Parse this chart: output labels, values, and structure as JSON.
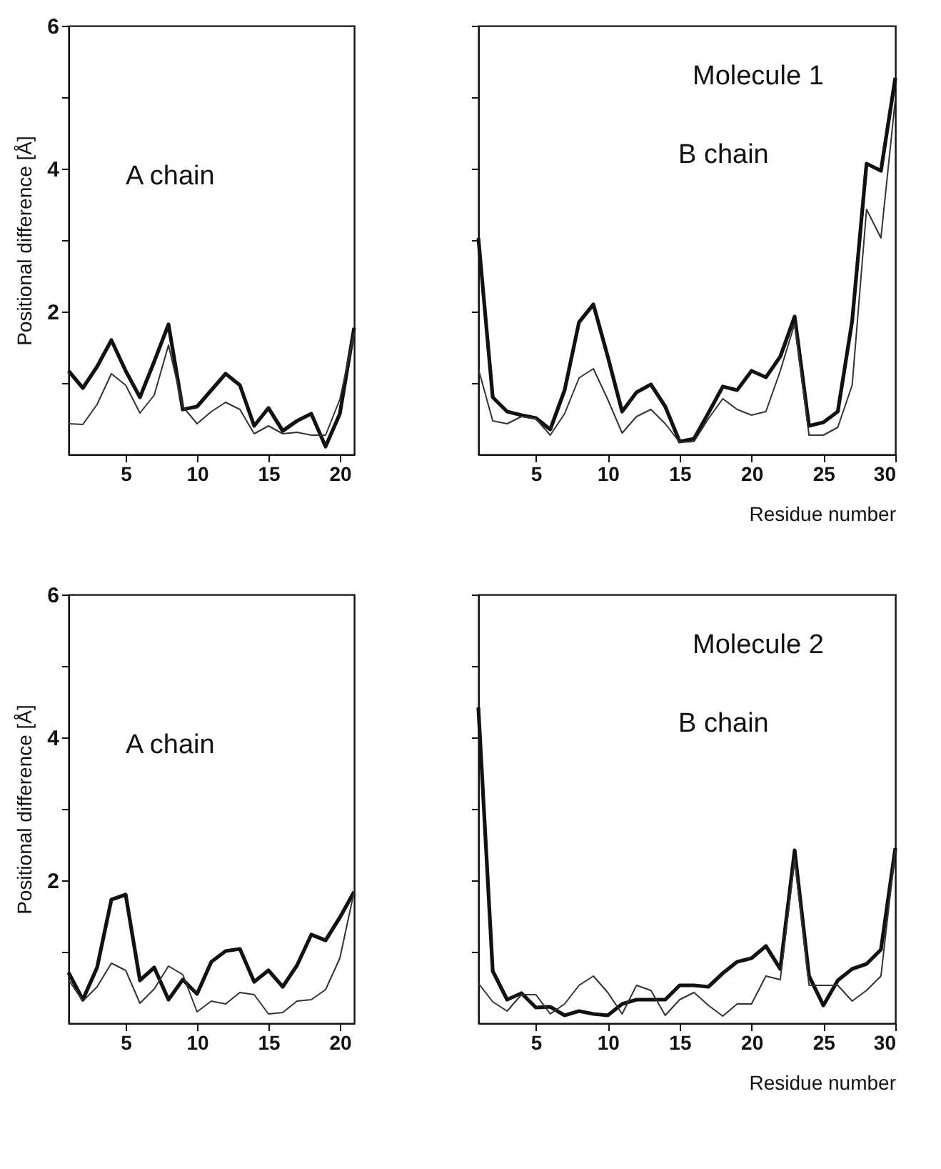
{
  "chart_data": [
    {
      "type": "line",
      "ylabel": "Positional difference [Å]",
      "annotations": [
        "A chain"
      ],
      "x": [
        1,
        2,
        3,
        4,
        5,
        6,
        7,
        8,
        9,
        10,
        11,
        12,
        13,
        14,
        15,
        16,
        17,
        18,
        19,
        20,
        21
      ],
      "xlim": [
        1,
        21
      ],
      "xticks": [
        5,
        10,
        15,
        20
      ],
      "ylim": [
        0,
        6
      ],
      "yticks": [
        {
          "value": 1,
          "label": null
        },
        2,
        {
          "value": 3,
          "label": null
        },
        4,
        {
          "value": 5,
          "label": null
        },
        6
      ],
      "grid": false,
      "series": [
        {
          "color": "#111111",
          "values": [
            1.17,
            0.93,
            1.23,
            1.6,
            1.17,
            0.8,
            1.3,
            1.82,
            0.63,
            0.67,
            0.9,
            1.13,
            0.97,
            0.4,
            0.65,
            0.33,
            0.47,
            0.57,
            0.11,
            0.57,
            1.77
          ]
        },
        {
          "color": "#333333",
          "values": [
            0.43,
            0.42,
            0.7,
            1.13,
            0.97,
            0.58,
            0.83,
            1.53,
            0.67,
            0.43,
            0.6,
            0.73,
            0.63,
            0.29,
            0.4,
            0.29,
            0.31,
            0.27,
            0.27,
            0.77,
            1.7
          ]
        }
      ]
    },
    {
      "type": "line",
      "xlabel": "Residue number",
      "annotations": [
        "Molecule 1",
        "B chain"
      ],
      "x": [
        1,
        2,
        3,
        4,
        5,
        6,
        7,
        8,
        9,
        10,
        11,
        12,
        13,
        14,
        15,
        16,
        17,
        18,
        19,
        20,
        21,
        22,
        23,
        24,
        25,
        26,
        27,
        28,
        29,
        30
      ],
      "xlim": [
        1,
        30
      ],
      "xticks": [
        5,
        10,
        15,
        20,
        25,
        30
      ],
      "ylim": [
        0,
        6
      ],
      "yticks": [
        {
          "value": 1,
          "label": null
        },
        {
          "value": 2,
          "label": null
        },
        {
          "value": 3,
          "label": null
        },
        {
          "value": 4,
          "label": null
        },
        {
          "value": 5,
          "label": null
        },
        {
          "value": 6,
          "label": null
        }
      ],
      "tick_labels": "x",
      "grid": false,
      "series": [
        {
          "color": "#111111",
          "values": [
            3.03,
            0.8,
            0.6,
            0.55,
            0.51,
            0.35,
            0.9,
            1.85,
            2.1,
            1.37,
            0.6,
            0.87,
            0.98,
            0.67,
            0.18,
            0.22,
            0.58,
            0.95,
            0.9,
            1.17,
            1.08,
            1.37,
            1.93,
            0.4,
            0.45,
            0.6,
            1.87,
            4.07,
            3.97,
            5.27
          ]
        },
        {
          "color": "#333333",
          "values": [
            1.2,
            0.47,
            0.43,
            0.53,
            0.5,
            0.27,
            0.57,
            1.07,
            1.2,
            0.77,
            0.3,
            0.53,
            0.63,
            0.43,
            0.17,
            0.18,
            0.5,
            0.78,
            0.63,
            0.55,
            0.6,
            1.17,
            1.83,
            0.27,
            0.27,
            0.38,
            0.97,
            3.43,
            3.03,
            4.97
          ]
        }
      ]
    },
    {
      "type": "line",
      "ylabel": "Positional difference [Å]",
      "annotations": [
        "A chain"
      ],
      "x": [
        1,
        2,
        3,
        4,
        5,
        6,
        7,
        8,
        9,
        10,
        11,
        12,
        13,
        14,
        15,
        16,
        17,
        18,
        19,
        20,
        21
      ],
      "xlim": [
        1,
        21
      ],
      "xticks": [
        5,
        10,
        15,
        20
      ],
      "ylim": [
        0,
        6
      ],
      "yticks": [
        {
          "value": 1,
          "label": null
        },
        2,
        {
          "value": 3,
          "label": null
        },
        4,
        {
          "value": 5,
          "label": null
        },
        6
      ],
      "grid": false,
      "series": [
        {
          "color": "#111111",
          "values": [
            0.71,
            0.33,
            0.78,
            1.73,
            1.8,
            0.6,
            0.78,
            0.33,
            0.61,
            0.41,
            0.86,
            1.01,
            1.04,
            0.58,
            0.74,
            0.51,
            0.81,
            1.24,
            1.16,
            1.48,
            1.84
          ]
        },
        {
          "color": "#333333",
          "values": [
            0.61,
            0.31,
            0.51,
            0.84,
            0.74,
            0.28,
            0.48,
            0.8,
            0.68,
            0.16,
            0.31,
            0.27,
            0.43,
            0.4,
            0.13,
            0.15,
            0.31,
            0.33,
            0.47,
            0.91,
            1.84
          ]
        }
      ]
    },
    {
      "type": "line",
      "xlabel": "Residue number",
      "annotations": [
        "Molecule 2",
        "B chain"
      ],
      "x": [
        1,
        2,
        3,
        4,
        5,
        6,
        7,
        8,
        9,
        10,
        11,
        12,
        13,
        14,
        15,
        16,
        17,
        18,
        19,
        20,
        21,
        22,
        23,
        24,
        25,
        26,
        27,
        28,
        29,
        30
      ],
      "xlim": [
        1,
        30
      ],
      "xticks": [
        5,
        10,
        15,
        20,
        25,
        30
      ],
      "ylim": [
        0,
        6
      ],
      "yticks": [
        {
          "value": 1,
          "label": null
        },
        {
          "value": 2,
          "label": null
        },
        {
          "value": 3,
          "label": null
        },
        {
          "value": 4,
          "label": null
        },
        {
          "value": 5,
          "label": null
        },
        {
          "value": 6,
          "label": null
        }
      ],
      "tick_labels": "x",
      "grid": false,
      "series": [
        {
          "color": "#111111",
          "values": [
            4.42,
            0.73,
            0.33,
            0.42,
            0.22,
            0.23,
            0.11,
            0.17,
            0.13,
            0.11,
            0.27,
            0.33,
            0.33,
            0.33,
            0.53,
            0.53,
            0.51,
            0.7,
            0.86,
            0.91,
            1.08,
            0.76,
            2.42,
            0.66,
            0.25,
            0.6,
            0.76,
            0.83,
            1.03,
            2.45
          ]
        },
        {
          "color": "#333333",
          "values": [
            0.56,
            0.3,
            0.17,
            0.4,
            0.4,
            0.13,
            0.27,
            0.53,
            0.66,
            0.43,
            0.13,
            0.53,
            0.46,
            0.11,
            0.33,
            0.43,
            0.25,
            0.1,
            0.27,
            0.27,
            0.66,
            0.61,
            2.29,
            0.53,
            0.53,
            0.53,
            0.31,
            0.46,
            0.66,
            2.42
          ]
        }
      ]
    }
  ]
}
